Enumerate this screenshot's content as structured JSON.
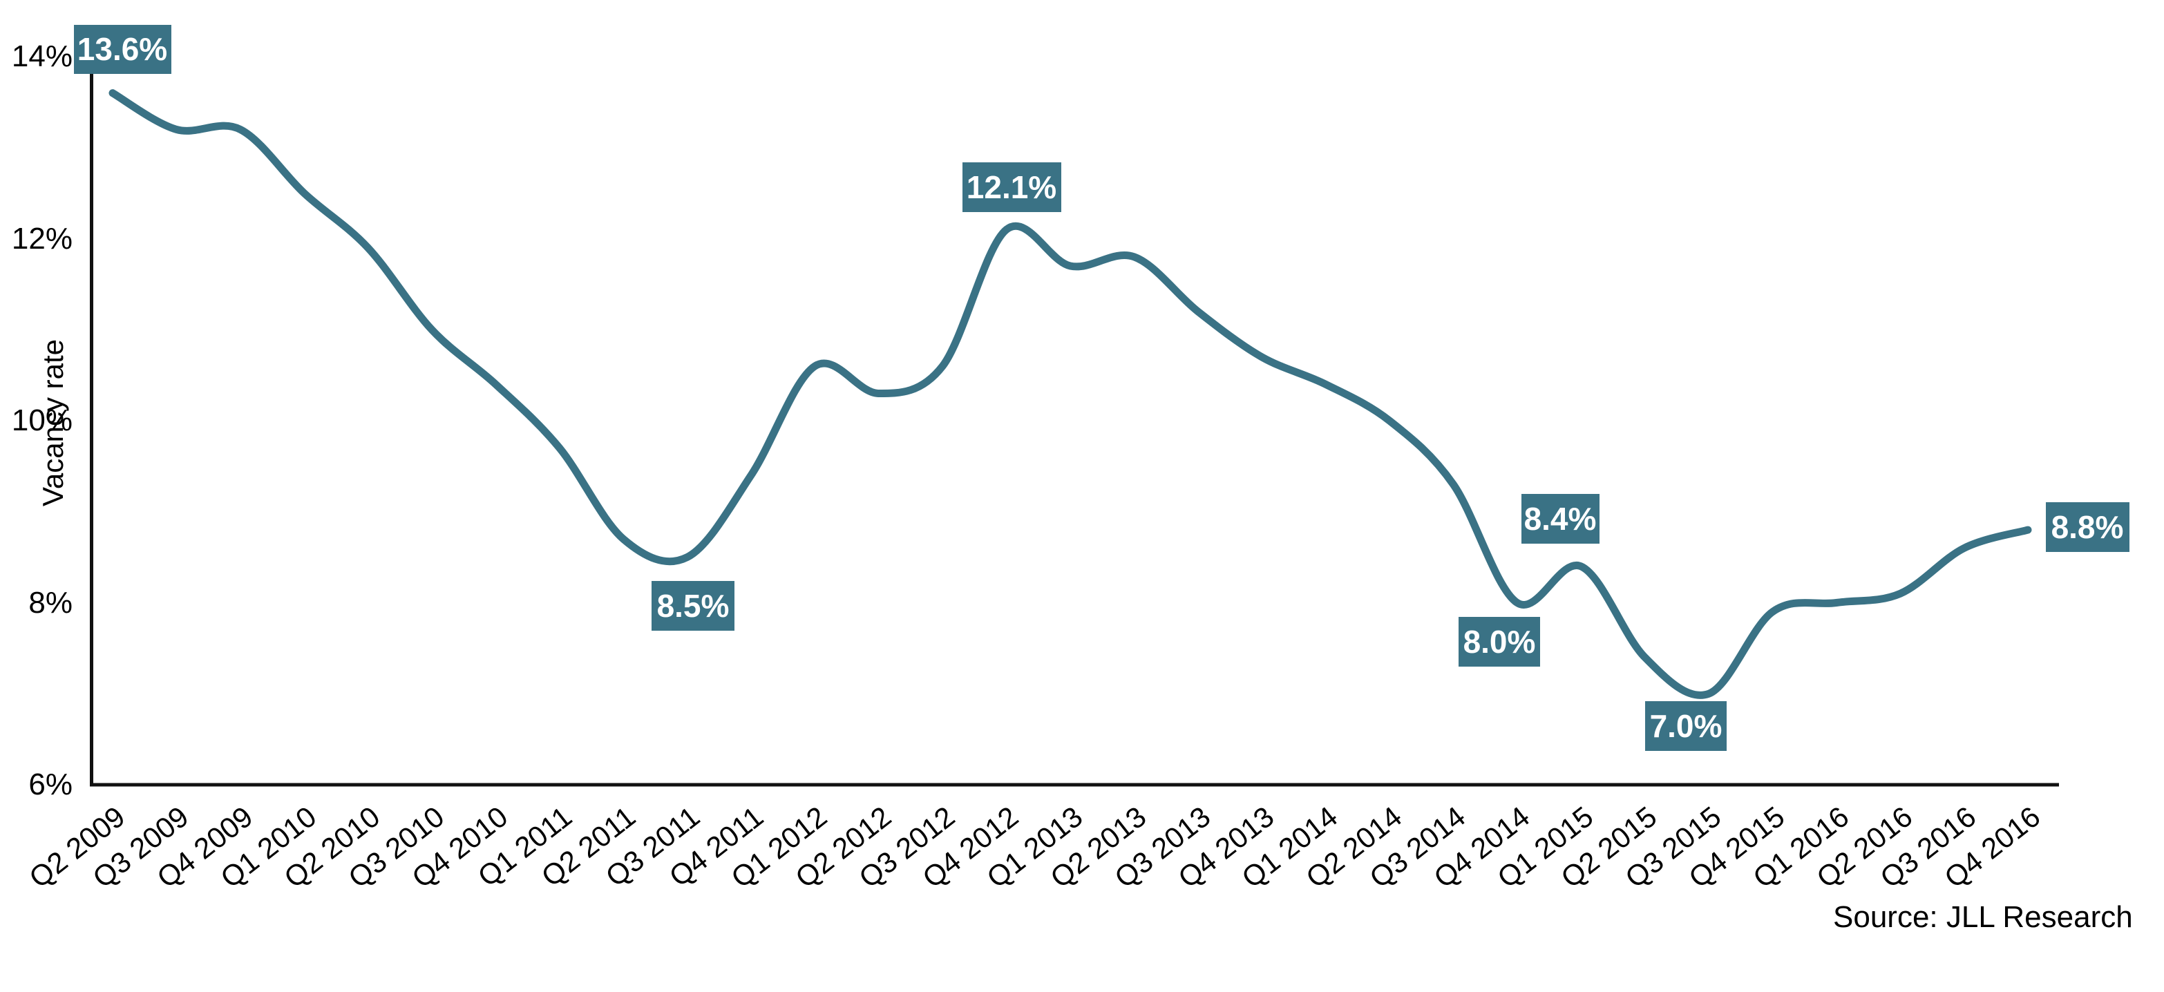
{
  "chart_data": {
    "type": "line",
    "title": "",
    "xlabel": "",
    "ylabel": "Vacancy rate",
    "ylim": [
      6,
      14
    ],
    "grid": "off",
    "legend": "none",
    "line_color": "#3A7285",
    "axis_color": "#000000",
    "y_tick_labels": [
      "14%",
      "12%",
      "10%",
      "8%",
      "6%"
    ],
    "y_tick_values": [
      14,
      12,
      10,
      8,
      6
    ],
    "categories": [
      "Q2 2009",
      "Q3 2009",
      "Q4 2009",
      "Q1 2010",
      "Q2 2010",
      "Q3 2010",
      "Q4 2010",
      "Q1 2011",
      "Q2 2011",
      "Q3 2011",
      "Q4 2011",
      "Q1 2012",
      "Q2 2012",
      "Q3 2012",
      "Q4 2012",
      "Q1 2013",
      "Q2 2013",
      "Q3 2013",
      "Q4 2013",
      "Q1 2014",
      "Q2 2014",
      "Q3 2014",
      "Q4 2014",
      "Q1 2015",
      "Q2 2015",
      "Q3 2015",
      "Q4 2015",
      "Q1 2016",
      "Q2 2016",
      "Q3 2016",
      "Q4 2016"
    ],
    "series": [
      {
        "name": "Vacancy rate",
        "values": [
          13.6,
          13.2,
          13.2,
          12.5,
          11.9,
          11.0,
          10.4,
          9.7,
          8.7,
          8.5,
          9.4,
          10.6,
          10.3,
          10.6,
          12.1,
          11.7,
          11.8,
          11.2,
          10.7,
          10.4,
          10.0,
          9.3,
          8.0,
          8.4,
          7.4,
          7.0,
          7.9,
          8.0,
          8.1,
          8.6,
          8.8
        ]
      }
    ],
    "point_labels": [
      {
        "category": "Q2 2009",
        "value": 13.6,
        "label": "13.6%"
      },
      {
        "category": "Q3 2011",
        "value": 8.5,
        "label": "8.5%"
      },
      {
        "category": "Q4 2012",
        "value": 12.1,
        "label": "12.1%"
      },
      {
        "category": "Q4 2014",
        "value": 8.0,
        "label": "8.0%"
      },
      {
        "category": "Q1 2015",
        "value": 8.4,
        "label": "8.4%"
      },
      {
        "category": "Q3 2015",
        "value": 7.0,
        "label": "7.0%"
      },
      {
        "category": "Q4 2016",
        "value": 8.8,
        "label": "8.8%"
      }
    ],
    "source_note": "Source: JLL Research"
  }
}
